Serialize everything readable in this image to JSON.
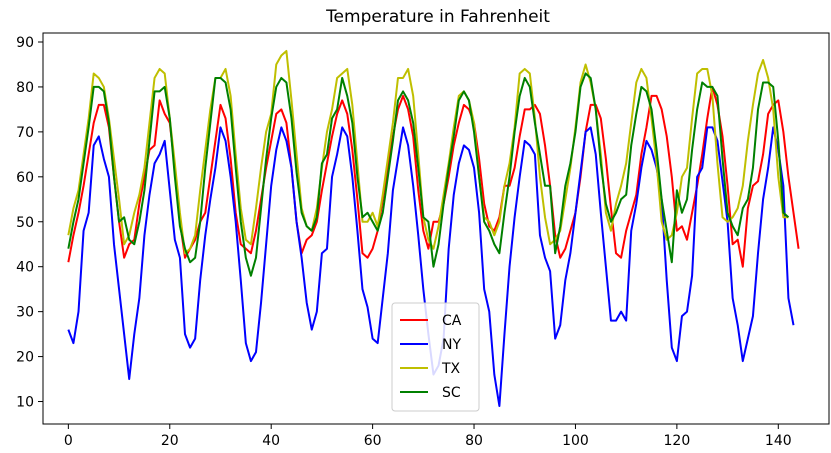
{
  "chart_data": {
    "type": "line",
    "title": "Temperature in Fahrenheit",
    "xlabel": "",
    "ylabel": "",
    "xlim": [
      -5,
      150
    ],
    "ylim": [
      5,
      92
    ],
    "xticks": [
      0,
      20,
      40,
      60,
      80,
      100,
      120,
      140
    ],
    "yticks": [
      10,
      20,
      30,
      40,
      50,
      60,
      70,
      80,
      90
    ],
    "grid": false,
    "legend_position": "bottom-center",
    "series": [
      {
        "name": "CA",
        "color": "#ff0000",
        "values": [
          41,
          47,
          52,
          58,
          65,
          72,
          76,
          76,
          71,
          60,
          50,
          42,
          45,
          46,
          54,
          60,
          66,
          67,
          77,
          74,
          72,
          62,
          50,
          42,
          44,
          46,
          50,
          52,
          60,
          68,
          76,
          73,
          64,
          52,
          45,
          44,
          43,
          48,
          55,
          62,
          68,
          74,
          75,
          72,
          62,
          50,
          43,
          46,
          47,
          50,
          57,
          63,
          69,
          74,
          77,
          74,
          66,
          55,
          43,
          42,
          44,
          48,
          55,
          62,
          69,
          75,
          78,
          75,
          69,
          57,
          48,
          44,
          50,
          50,
          54,
          60,
          67,
          72,
          76,
          75,
          72,
          64,
          54,
          49,
          48,
          51,
          58,
          58,
          62,
          69,
          75,
          75,
          76,
          74,
          67,
          58,
          47,
          42,
          44,
          48,
          52,
          60,
          70,
          76,
          76,
          73,
          64,
          53,
          43,
          42,
          48,
          52,
          56,
          65,
          71,
          78,
          78,
          75,
          69,
          60,
          48,
          49,
          46,
          52,
          58,
          65,
          73,
          80,
          76,
          69,
          58,
          45,
          46,
          40,
          53,
          58,
          59,
          65,
          74,
          76,
          77,
          70,
          60,
          52,
          44
        ]
      },
      {
        "name": "NY",
        "color": "#0000ff",
        "values": [
          26,
          23,
          30,
          48,
          52,
          67,
          69,
          64,
          60,
          45,
          35,
          25,
          15,
          25,
          33,
          47,
          56,
          63,
          65,
          68,
          57,
          46,
          42,
          25,
          22,
          24,
          37,
          47,
          55,
          62,
          71,
          68,
          60,
          50,
          37,
          23,
          19,
          21,
          32,
          45,
          58,
          66,
          71,
          68,
          62,
          50,
          42,
          32,
          26,
          30,
          43,
          44,
          60,
          65,
          71,
          69,
          60,
          48,
          35,
          31,
          24,
          23,
          33,
          43,
          57,
          64,
          71,
          67,
          58,
          47,
          35,
          25,
          16,
          18,
          24,
          44,
          56,
          63,
          67,
          66,
          62,
          52,
          35,
          30,
          16,
          9,
          25,
          40,
          51,
          60,
          68,
          67,
          65,
          47,
          42,
          39,
          24,
          27,
          37,
          43,
          52,
          61,
          70,
          71,
          65,
          52,
          40,
          28,
          28,
          30,
          28,
          48,
          54,
          62,
          68,
          66,
          62,
          55,
          37,
          22,
          19,
          29,
          30,
          38,
          60,
          62,
          71,
          71,
          68,
          59,
          50,
          33,
          27,
          19,
          24,
          29,
          43,
          55,
          62,
          71,
          66,
          58,
          33,
          27
        ]
      },
      {
        "name": "TX",
        "color": "#bfbf00",
        "values": [
          47,
          53,
          57,
          65,
          73,
          83,
          82,
          80,
          73,
          64,
          55,
          45,
          47,
          52,
          56,
          62,
          72,
          82,
          84,
          83,
          73,
          63,
          52,
          43,
          44,
          47,
          57,
          66,
          75,
          82,
          82,
          84,
          78,
          65,
          53,
          46,
          45,
          53,
          62,
          70,
          74,
          85,
          87,
          88,
          77,
          65,
          53,
          49,
          48,
          53,
          62,
          70,
          75,
          82,
          83,
          84,
          76,
          63,
          50,
          50,
          52,
          49,
          56,
          64,
          72,
          82,
          82,
          84,
          78,
          65,
          51,
          46,
          44,
          49,
          56,
          63,
          71,
          78,
          79,
          77,
          72,
          60,
          51,
          50,
          47,
          50,
          58,
          63,
          71,
          83,
          84,
          83,
          73,
          60,
          51,
          45,
          46,
          48,
          55,
          62,
          71,
          81,
          85,
          81,
          75,
          65,
          52,
          48,
          54,
          58,
          63,
          72,
          81,
          84,
          82,
          73,
          63,
          50,
          46,
          47,
          52,
          60,
          62,
          73,
          83,
          84,
          84,
          78,
          63,
          51,
          50,
          51,
          53,
          58,
          68,
          76,
          83,
          86,
          82,
          75,
          60,
          51,
          51
        ]
      },
      {
        "name": "SC",
        "color": "#008000",
        "values": [
          44,
          50,
          55,
          63,
          71,
          80,
          80,
          79,
          72,
          60,
          50,
          51,
          46,
          45,
          50,
          57,
          68,
          79,
          79,
          80,
          73,
          60,
          49,
          44,
          41,
          42,
          50,
          62,
          72,
          82,
          82,
          81,
          75,
          62,
          50,
          42,
          38,
          42,
          53,
          64,
          73,
          80,
          82,
          81,
          73,
          61,
          52,
          49,
          48,
          51,
          63,
          65,
          73,
          75,
          82,
          78,
          72,
          60,
          51,
          52,
          50,
          48,
          52,
          60,
          68,
          77,
          79,
          77,
          72,
          62,
          51,
          50,
          40,
          45,
          54,
          62,
          69,
          77,
          79,
          77,
          70,
          60,
          50,
          48,
          45,
          43,
          52,
          60,
          70,
          78,
          82,
          80,
          72,
          65,
          58,
          58,
          43,
          49,
          58,
          63,
          70,
          80,
          83,
          82,
          75,
          63,
          54,
          50,
          52,
          55,
          56,
          67,
          74,
          80,
          79,
          75,
          66,
          55,
          48,
          41,
          57,
          52,
          55,
          66,
          75,
          81,
          80,
          80,
          78,
          64,
          52,
          49,
          47,
          53,
          55,
          62,
          75,
          81,
          81,
          80,
          68,
          52,
          51
        ]
      }
    ]
  }
}
